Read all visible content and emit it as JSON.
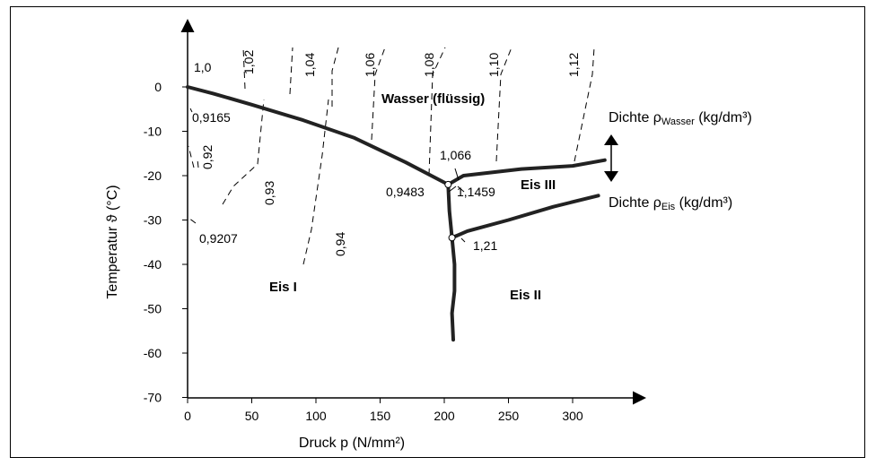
{
  "chart_data": {
    "type": "line",
    "xlabel": "Druck p (N/mm²)",
    "ylabel": "Temperatur ϑ (°C)",
    "xlim": [
      0,
      350
    ],
    "ylim": [
      -70,
      0
    ],
    "x_ticks": [
      "0",
      "50",
      "100",
      "150",
      "200",
      "250",
      "300"
    ],
    "y_ticks": [
      "0",
      "-10",
      "-20",
      "-30",
      "-40",
      "-50",
      "-60",
      "-70"
    ],
    "phase_boundaries": [
      {
        "points": [
          [
            0,
            0
          ],
          [
            20,
            -1.5
          ],
          [
            50,
            -4
          ],
          [
            90,
            -7.5
          ],
          [
            130,
            -11.5
          ],
          [
            170,
            -17
          ],
          [
            203,
            -22
          ]
        ]
      },
      {
        "points": [
          [
            203,
            -22
          ],
          [
            215,
            -20
          ],
          [
            260,
            -18.5
          ],
          [
            300,
            -17.8
          ],
          [
            325,
            -16.5
          ]
        ]
      },
      {
        "points": [
          [
            203,
            -22
          ],
          [
            204,
            -28
          ],
          [
            206,
            -34
          ],
          [
            208,
            -40
          ],
          [
            208,
            -46
          ],
          [
            206,
            -51
          ],
          [
            207,
            -57
          ]
        ]
      },
      {
        "points": [
          [
            206,
            -34
          ],
          [
            218,
            -32.5
          ],
          [
            250,
            -30
          ],
          [
            285,
            -27
          ],
          [
            320,
            -24.5
          ]
        ]
      }
    ],
    "triple_points": [
      {
        "x": 203,
        "y": -22,
        "labels": [
          "1,066",
          "0,9483",
          "1,1459"
        ]
      },
      {
        "x": 206,
        "y": -34,
        "labels": [
          "1,21"
        ]
      }
    ],
    "isochores_water": [
      "1,0",
      "1,02",
      "1,04",
      "1,06",
      "1,08",
      "1,10",
      "1,12"
    ],
    "isochores_ice": [
      "0,9165",
      "0,92",
      "0,9207",
      "0,93",
      "0,94"
    ],
    "regions": [
      "Wasser (flüssig)",
      "Eis I",
      "Eis II",
      "Eis III"
    ],
    "side_labels": {
      "water_density_prefix": "Dichte ρ",
      "water_density_sub": "Wasser",
      "water_density_unit": " (kg/dm³)",
      "ice_density_prefix": "Dichte ρ",
      "ice_density_sub": "Eis",
      "ice_density_unit": " (kg/dm³)"
    }
  }
}
